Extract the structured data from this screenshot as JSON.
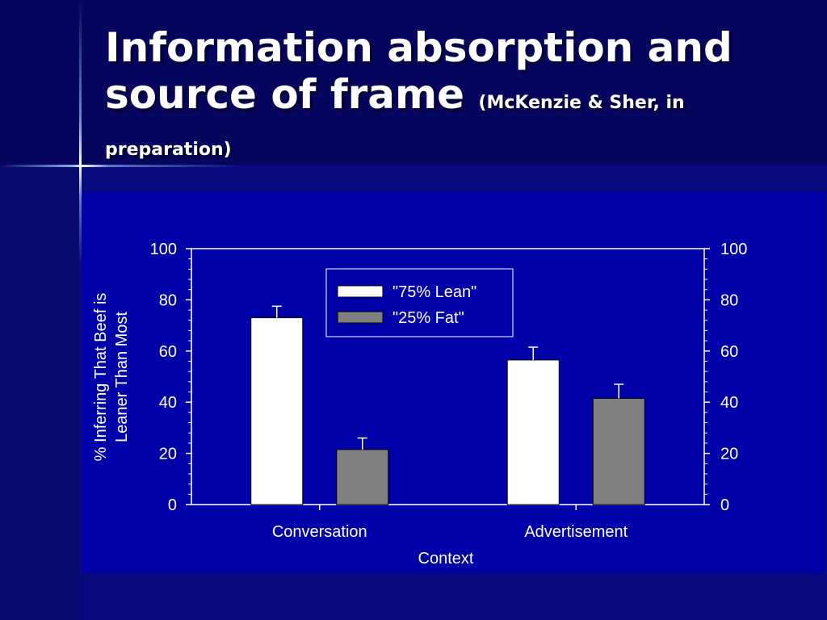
{
  "slide": {
    "title_main": "Information absorption and source of frame",
    "title_sub": "(McKenzie & Sher, in preparation)"
  },
  "colors": {
    "background": "#0b0b7a",
    "chart_background": "#0000a8",
    "lean_bar": "#ffffff",
    "fat_bar": "#808080",
    "text": "#ffffff"
  },
  "chart_data": {
    "type": "bar",
    "categories": [
      "Conversation",
      "Advertisement"
    ],
    "series": [
      {
        "name": "\"75% Lean\"",
        "values": [
          73,
          56.5
        ],
        "error": [
          4.5,
          5
        ],
        "color": "#ffffff"
      },
      {
        "name": "\"25% Fat\"",
        "values": [
          21.5,
          41.5
        ],
        "error": [
          4.5,
          5.5
        ],
        "color": "#808080"
      }
    ],
    "xlabel": "Context",
    "ylabel_lines": [
      "% Inferring That Beef is",
      "Leaner Than Most"
    ],
    "ylim": [
      0,
      100
    ],
    "yticks": [
      "0",
      "20",
      "40",
      "60",
      "80",
      "100"
    ],
    "right_axis": true,
    "legend_position": "top-center",
    "grid": false
  }
}
